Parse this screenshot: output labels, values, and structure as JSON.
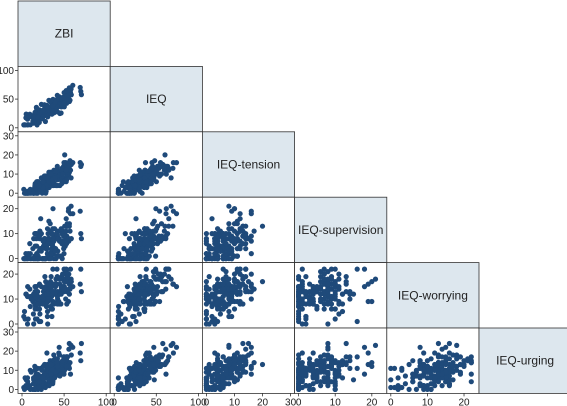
{
  "chart_data": {
    "type": "scatter",
    "subtype": "scatterplot-matrix-lower-triangle",
    "variables": [
      "ZBI",
      "IEQ",
      "IEQ-tension",
      "IEQ-supervision",
      "IEQ-worrying",
      "IEQ-urging"
    ],
    "axis_ticks": {
      "ZBI": [
        0,
        50,
        100
      ],
      "IEQ": [
        0,
        50,
        100
      ],
      "IEQ-tension": [
        0,
        10,
        20,
        30
      ],
      "IEQ-supervision": [
        0,
        10,
        20
      ],
      "IEQ-worrying": [
        0,
        10,
        20
      ],
      "IEQ-urging": [
        0,
        10,
        20,
        30
      ]
    },
    "axis_ranges": {
      "ZBI": [
        0,
        100
      ],
      "IEQ": [
        0,
        100
      ],
      "IEQ-tension": [
        0,
        30
      ],
      "IEQ-supervision": [
        0,
        23
      ],
      "IEQ-worrying": [
        0,
        23
      ],
      "IEQ-urging": [
        0,
        30
      ]
    },
    "point_color": "#1f4a7a",
    "diagonal_fill": "#dde7ee",
    "grid": false,
    "legend": "none"
  }
}
